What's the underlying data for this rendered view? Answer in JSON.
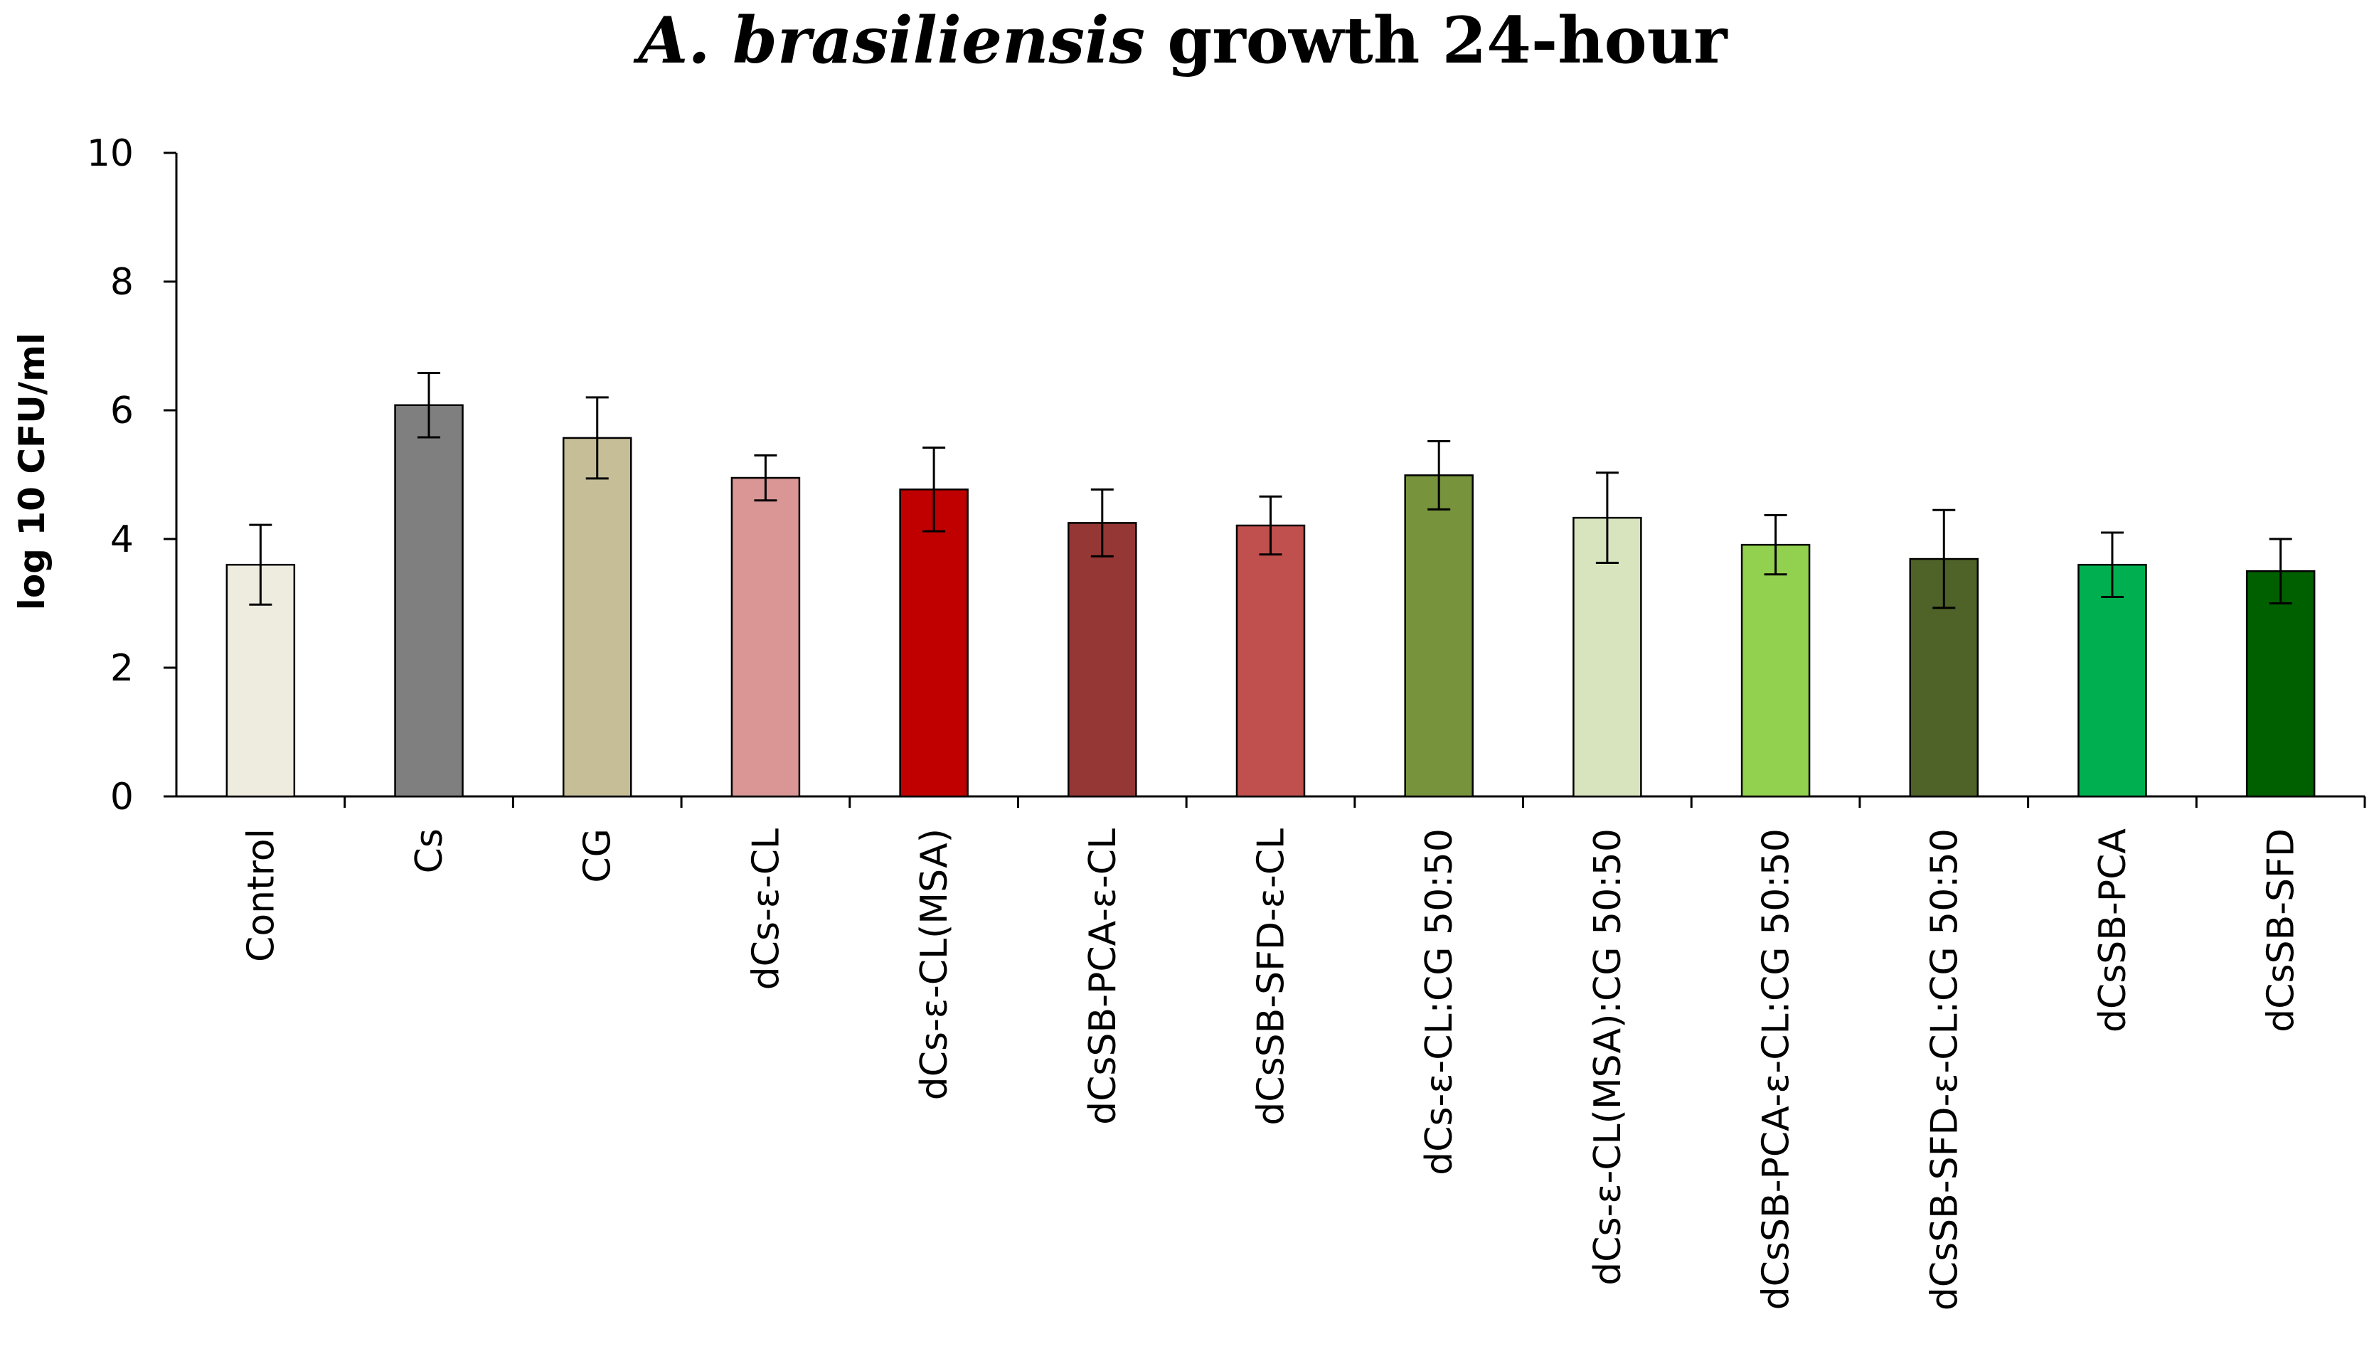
{
  "chart_data": {
    "type": "bar",
    "title": {
      "italic_part": "A. brasiliensis",
      "rest": " growth 24-hour"
    },
    "xlabel": "",
    "ylabel": "log 10 CFU/ml",
    "ylim": [
      0,
      10
    ],
    "yticks": [
      0,
      2,
      4,
      6,
      8,
      10
    ],
    "grid": false,
    "legend": "none",
    "categories": [
      "Control",
      "Cs",
      "CG",
      "dCs-ε-CL",
      "dCs-ε-CL(MSA)",
      "dCsSB-PCA-ε-CL",
      "dCsSB-SFD-ε-CL",
      "dCs-ε-CL:CG 50:50",
      "dCs-ε-CL(MSA):CG 50:50",
      "dCsSB-PCA-ε-CL:CG 50:50",
      "dCsSB-SFD-ε-CL:CG 50:50",
      "dCsSB-PCA",
      "dCsSB-SFD"
    ],
    "values": [
      3.6,
      6.08,
      5.57,
      4.95,
      4.77,
      4.25,
      4.21,
      4.99,
      4.33,
      3.91,
      3.69,
      3.6,
      3.5
    ],
    "errors": [
      0.62,
      0.5,
      0.63,
      0.35,
      0.65,
      0.52,
      0.45,
      0.53,
      0.7,
      0.46,
      0.76,
      0.5,
      0.5
    ],
    "colors": [
      "#EEEBDF",
      "#7F7F7F",
      "#C5BE97",
      "#D99694",
      "#C00000",
      "#953735",
      "#C0504D",
      "#77933C",
      "#D7E4BD",
      "#92D050",
      "#4F6228",
      "#00B050",
      "#006000"
    ]
  }
}
